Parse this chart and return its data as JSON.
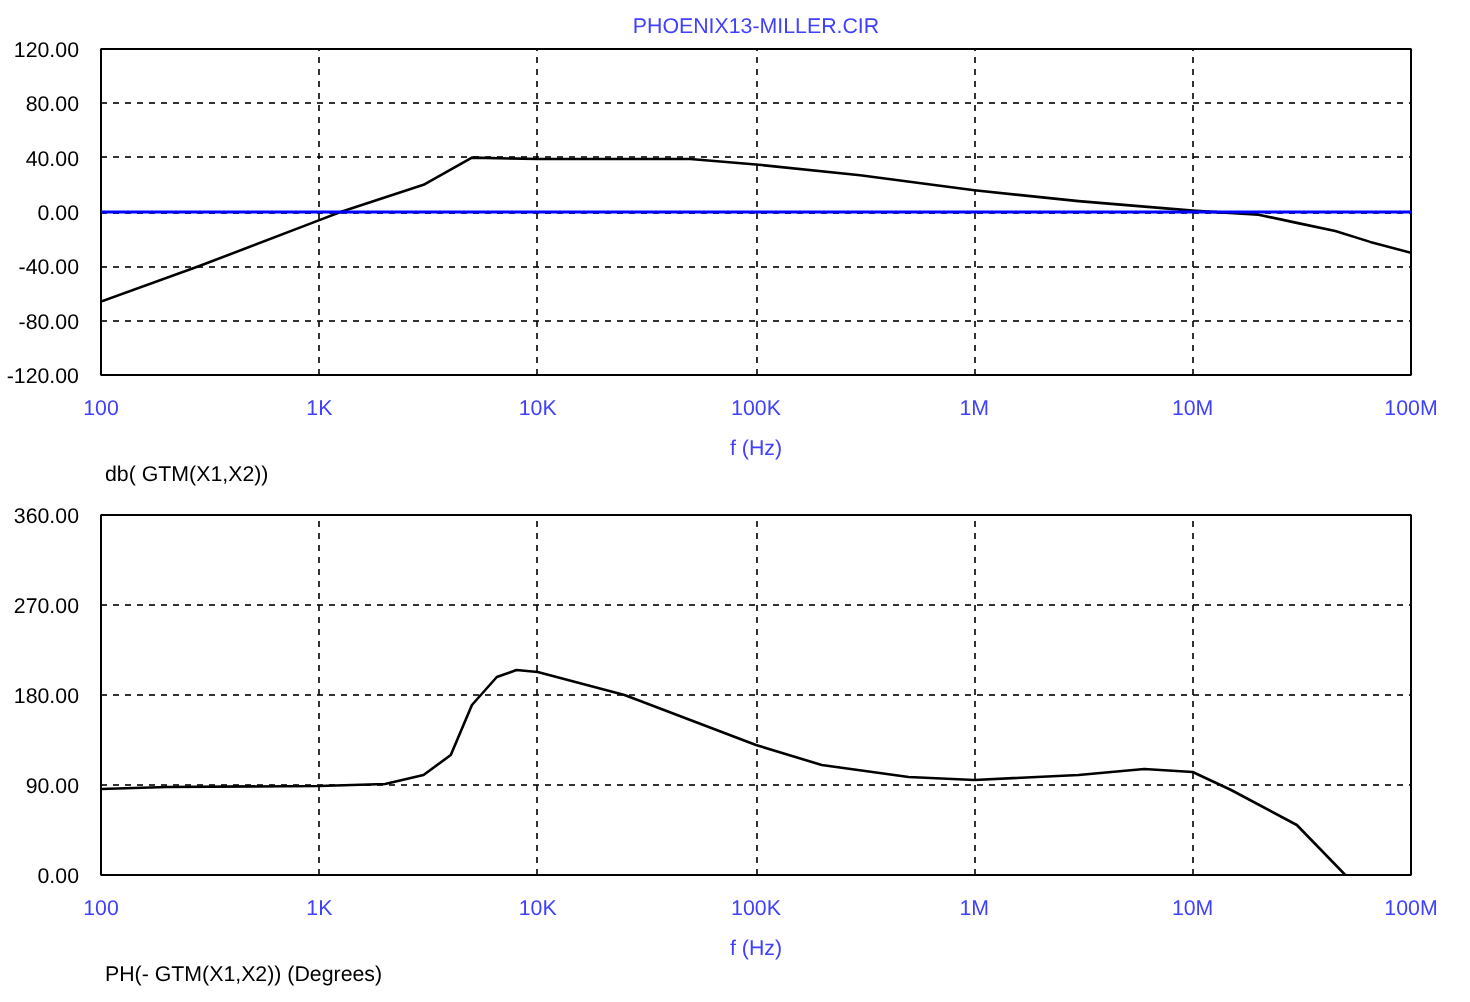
{
  "chart_data": [
    {
      "type": "line",
      "title": "PHOENIX13-MILLER.CIR",
      "xlabel": "f (Hz)",
      "annotations": [
        "db( GTM(X1,X2))"
      ],
      "log": "x",
      "grid": true,
      "line_style": "solid",
      "marker": "none",
      "x": [
        100,
        280,
        1000,
        1250,
        3000,
        5000,
        10000,
        50000,
        100000,
        300000,
        1000000,
        3000000,
        10000000,
        20000000,
        30000000,
        45000000,
        65000000,
        100000000
      ],
      "series": [
        {
          "color": "#000000",
          "values": [
            -66,
            -40,
            -6,
            0,
            20,
            40,
            39,
            39,
            35,
            27,
            16,
            8,
            1,
            -2,
            -8,
            -14,
            -22,
            -30
          ]
        }
      ],
      "xlim": [
        100,
        100000000
      ],
      "xticks": [
        {
          "value": 100,
          "label": "100"
        },
        {
          "value": 1000,
          "label": "1K"
        },
        {
          "value": 10000,
          "label": "10K"
        },
        {
          "value": 100000,
          "label": "100K"
        },
        {
          "value": 1000000,
          "label": "1M"
        },
        {
          "value": 10000000,
          "label": "10M"
        },
        {
          "value": 100000000,
          "label": "100M"
        }
      ],
      "ylim": [
        -120,
        120
      ],
      "yticks": [
        {
          "value": -120,
          "label": "-120.00"
        },
        {
          "value": -80,
          "label": "-80.00"
        },
        {
          "value": -40,
          "label": "-40.00"
        },
        {
          "value": 0,
          "label": "0.00"
        },
        {
          "value": 40,
          "label": "40.00"
        },
        {
          "value": 80,
          "label": "80.00"
        },
        {
          "value": 120,
          "label": "120.00"
        }
      ],
      "ref_lines": [
        {
          "axis": "y",
          "value": 0,
          "color": "#0000ff"
        }
      ]
    },
    {
      "type": "line",
      "xlabel": "f (Hz)",
      "annotations": [
        "PH(- GTM(X1,X2)) (Degrees)"
      ],
      "log": "x",
      "grid": true,
      "line_style": "solid",
      "marker": "none",
      "x": [
        100,
        200,
        1000,
        2000,
        3000,
        4000,
        5000,
        6500,
        8000,
        10000,
        25000,
        50000,
        100000,
        200000,
        500000,
        1000000,
        3000000,
        6000000,
        10000000,
        15000000,
        30000000,
        50000000
      ],
      "series": [
        {
          "color": "#000000",
          "values": [
            86,
            88,
            89,
            91,
            100,
            120,
            170,
            198,
            205,
            203,
            180,
            155,
            130,
            110,
            98,
            95,
            100,
            106,
            103,
            85,
            50,
            0
          ]
        }
      ],
      "xlim": [
        100,
        100000000
      ],
      "xticks": [
        {
          "value": 100,
          "label": "100"
        },
        {
          "value": 1000,
          "label": "1K"
        },
        {
          "value": 10000,
          "label": "10K"
        },
        {
          "value": 100000,
          "label": "100K"
        },
        {
          "value": 1000000,
          "label": "1M"
        },
        {
          "value": 10000000,
          "label": "10M"
        },
        {
          "value": 100000000,
          "label": "100M"
        }
      ],
      "ylim": [
        0,
        360
      ],
      "yticks": [
        {
          "value": 0,
          "label": "0.00"
        },
        {
          "value": 90,
          "label": "90.00"
        },
        {
          "value": 180,
          "label": "180.00"
        },
        {
          "value": 270,
          "label": "270.00"
        },
        {
          "value": 360,
          "label": "360.00"
        }
      ]
    }
  ]
}
